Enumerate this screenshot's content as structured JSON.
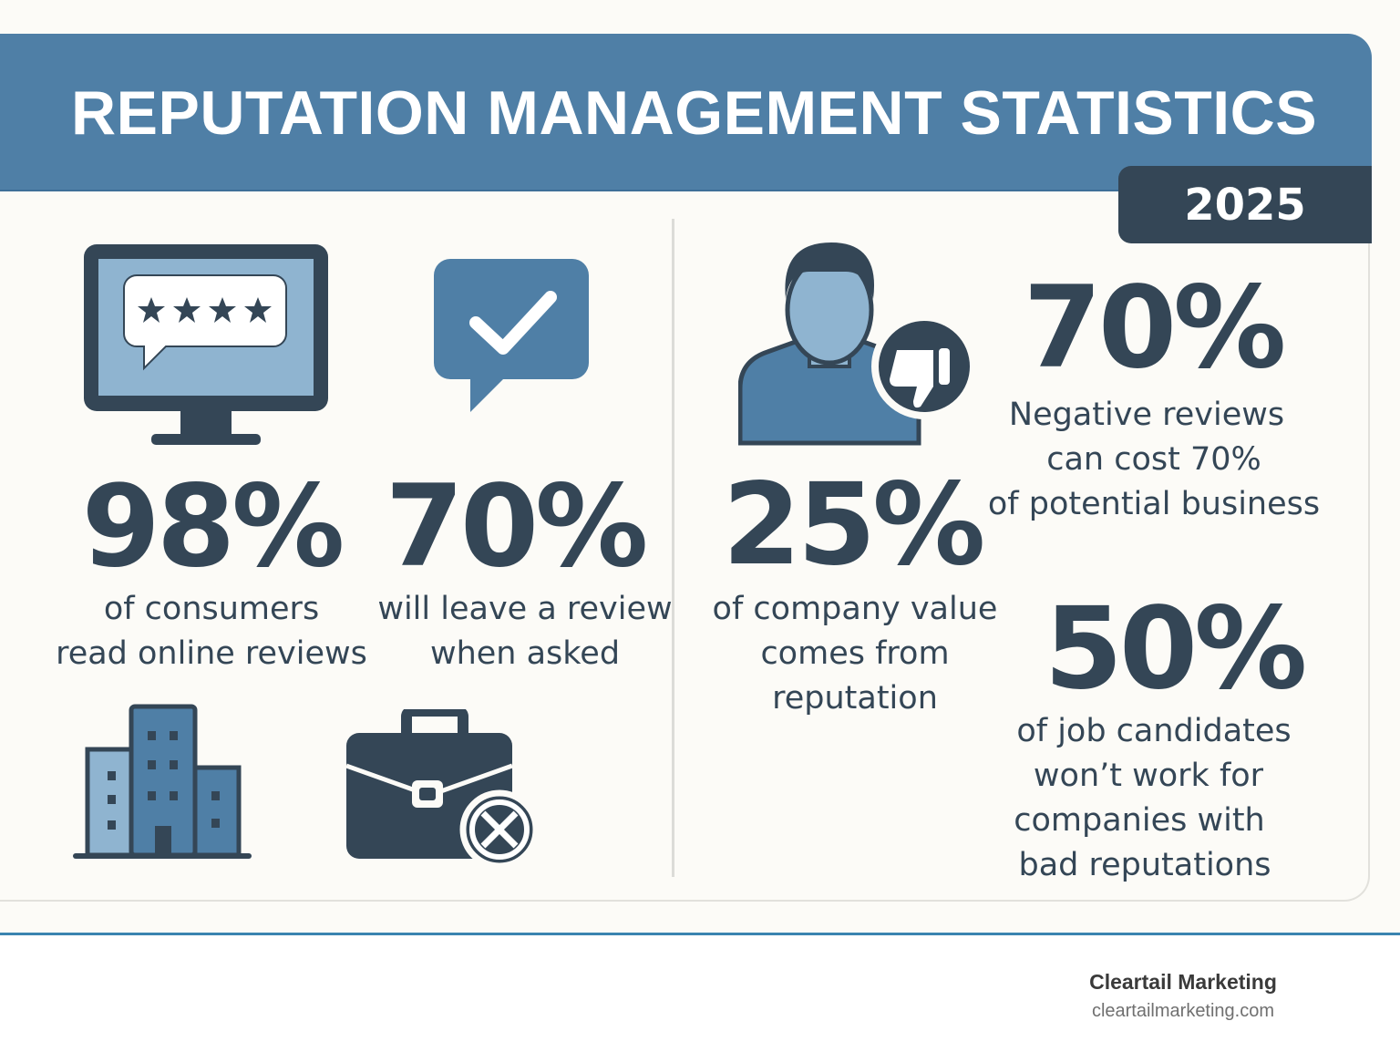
{
  "header": {
    "title": "REPUTATION MANAGEMENT STATISTICS",
    "year": "2025"
  },
  "colors": {
    "primary_blue": "#4f7fa6",
    "dark_navy": "#344656",
    "light_blue": "#8fb4d0",
    "background": "#fcfbf7",
    "accent_rule": "#3a84b0"
  },
  "stats": [
    {
      "value": "98%",
      "lines": [
        "of consumers",
        "read online reviews"
      ],
      "icon": "monitor-review-stars-icon"
    },
    {
      "value": "70%",
      "lines": [
        "will leave a review",
        "when asked"
      ],
      "icon": "chat-checkmark-icon"
    },
    {
      "value": "25%",
      "lines": [
        "of company value",
        "comes from",
        "reputation"
      ],
      "icon": "person-thumbs-down-icon"
    },
    {
      "value": "70%",
      "lines": [
        "Negative reviews",
        "can cost 70%",
        "of potential business"
      ]
    },
    {
      "value": "50%",
      "lines": [
        "of job candidates",
        "won’t work for",
        "companies with",
        "bad reputations"
      ],
      "icon": "briefcase-x-icon"
    }
  ],
  "extra_icons": [
    "office-buildings-icon"
  ],
  "footer": {
    "brand": "Cleartail Marketing",
    "url": "cleartailmarketing.com"
  }
}
